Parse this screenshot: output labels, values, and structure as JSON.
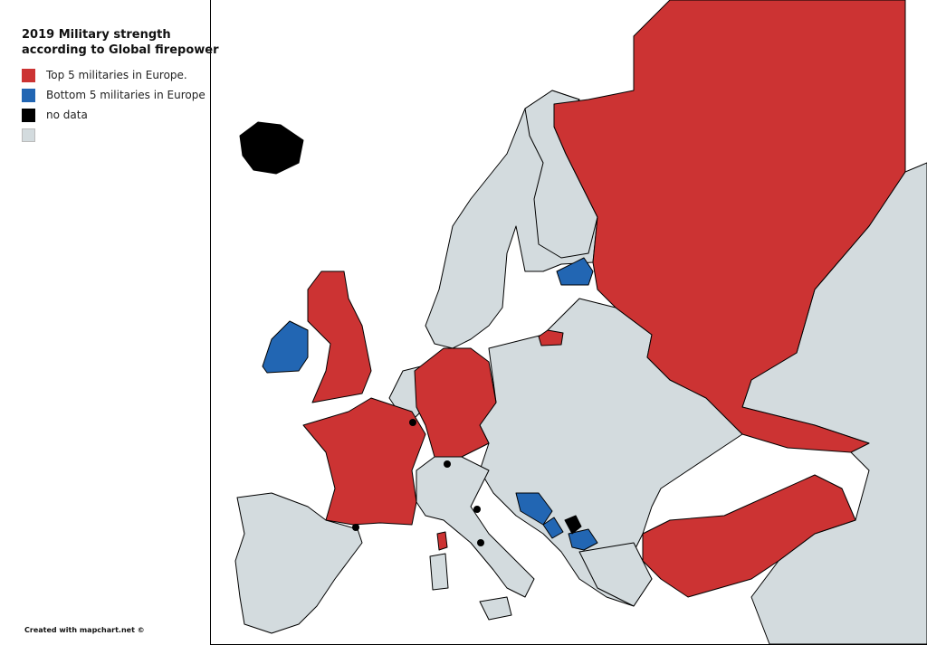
{
  "legend": {
    "title_line1": "2019 Military strength",
    "title_line2": "according to Global firepower",
    "items": [
      {
        "label": "Top 5 militaries in Europe.",
        "color": "#cc3333"
      },
      {
        "label": "Bottom 5 militaries in Europe",
        "color": "#2266b3"
      },
      {
        "label": "no data",
        "color": "#000000"
      },
      {
        "label": "",
        "color": "#d3dbde"
      }
    ]
  },
  "colors": {
    "top": "#cc3333",
    "bottom": "#2266b3",
    "nodata": "#000000",
    "other": "#d3dbde",
    "sea": "#ffffff"
  },
  "map": {
    "top5": [
      "Russia",
      "France",
      "United Kingdom",
      "Germany",
      "Turkey"
    ],
    "bottom5": [
      "Ireland",
      "Estonia",
      "Bosnia and Herzegovina",
      "Montenegro",
      "North Macedonia"
    ],
    "no_data": [
      "Iceland",
      "Kosovo",
      "Luxembourg",
      "Liechtenstein",
      "San Marino",
      "Vatican City",
      "Andorra"
    ]
  },
  "credit": "Created with mapchart.net ©"
}
